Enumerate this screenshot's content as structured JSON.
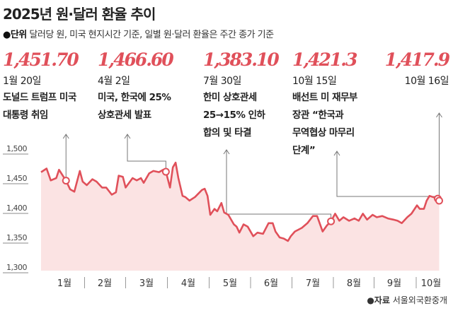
{
  "header": {
    "title": "2025년 원·달러 환율 추이",
    "subtitle_label": "●단위",
    "subtitle_text": " 달러당 원, 미국 현지시간 기준, 일별 원·달러 환율은 주간 종가 기준"
  },
  "source": {
    "label": "●자료",
    "text": " 서울외국환중개"
  },
  "chart_data": {
    "type": "area",
    "title": "2025년 원·달러 환율 추이",
    "unit": "달러당 원",
    "color": "#e0505a",
    "fill": "#fbe3e3",
    "ylim": [
      1300,
      1500
    ],
    "yticks": [
      "1,300",
      "1,350",
      "1,400",
      "1,450",
      "1,500"
    ],
    "ytick_values": [
      1300,
      1350,
      1400,
      1450,
      1500
    ],
    "xticks": [
      "1월",
      "2월",
      "3월",
      "4월",
      "5월",
      "6월",
      "7월",
      "8월",
      "9월",
      "10월"
    ],
    "grid": false,
    "series": [
      {
        "dates": [
          "01-02",
          "01-06",
          "01-09",
          "01-13",
          "01-15",
          "01-20",
          "01-23",
          "01-26",
          "01-30",
          "02-01",
          "02-04",
          "02-08",
          "02-11",
          "02-15",
          "02-18",
          "02-22",
          "02-25",
          "02-27",
          "03-02",
          "03-04",
          "03-09",
          "03-12",
          "03-15",
          "03-17",
          "03-21",
          "03-24",
          "03-28",
          "03-31",
          "04-02",
          "04-05",
          "04-07",
          "04-09",
          "04-11",
          "04-14",
          "04-16",
          "04-19",
          "04-23",
          "04-28",
          "04-30",
          "05-02",
          "05-04",
          "05-07",
          "05-09",
          "05-12",
          "05-14",
          "05-17",
          "05-21",
          "05-23",
          "05-25",
          "05-28",
          "05-31",
          "06-04",
          "06-07",
          "06-11",
          "06-15",
          "06-18",
          "06-20",
          "06-23",
          "06-26",
          "06-29",
          "07-01",
          "07-04",
          "07-09",
          "07-13",
          "07-17",
          "07-20",
          "07-24",
          "07-27",
          "07-30",
          "08-02",
          "08-05",
          "08-08",
          "08-12",
          "08-16",
          "08-19",
          "08-22",
          "08-25",
          "08-29",
          "09-01",
          "09-05",
          "09-09",
          "09-13",
          "09-16",
          "09-19",
          "09-23",
          "09-26",
          "09-30",
          "10-02",
          "10-05",
          "10-07",
          "10-09",
          "10-15",
          "10-16"
        ],
        "values": [
          1466,
          1472,
          1452,
          1456,
          1470,
          1451.7,
          1437,
          1433,
          1468,
          1450,
          1444,
          1454,
          1450,
          1440,
          1440,
          1428,
          1432,
          1460,
          1458,
          1440,
          1456,
          1452,
          1456,
          1448,
          1464,
          1468,
          1466,
          1470,
          1466.6,
          1440,
          1474,
          1482,
          1456,
          1426,
          1424,
          1418,
          1424,
          1436,
          1438,
          1426,
          1394,
          1404,
          1400,
          1414,
          1398,
          1394,
          1378,
          1374,
          1364,
          1378,
          1374,
          1358,
          1364,
          1362,
          1380,
          1380,
          1366,
          1356,
          1354,
          1350,
          1358,
          1366,
          1372,
          1380,
          1392,
          1392,
          1366,
          1376,
          1383.1,
          1396,
          1384,
          1390,
          1384,
          1388,
          1384,
          1396,
          1386,
          1394,
          1390,
          1392,
          1388,
          1386,
          1384,
          1380,
          1390,
          1396,
          1410,
          1404,
          1404,
          1418,
          1426,
          1421.3,
          1417.9
        ]
      }
    ],
    "annotations": [
      {
        "value_label": "1,451.70",
        "date": "01-20",
        "value": 1451.7,
        "date_label": "1월 20일",
        "text": "도널드 트럼프 미국\n대통령 취임"
      },
      {
        "value_label": "1,466.60",
        "date": "04-02",
        "value": 1466.6,
        "date_label": "4월 2일",
        "text": "미국, 한국에 25%\n상호관세 발표"
      },
      {
        "value_label": "1,383.10",
        "date": "07-30",
        "value": 1383.1,
        "date_label": "7월 30일",
        "text": "한미 상호관세\n25→15% 인하\n합의 및 타결"
      },
      {
        "value_label": "1,421.3",
        "date": "10-15",
        "value": 1421.3,
        "date_label": "10월 15일",
        "text": "배선트 미 재무부\n장관 “한국과\n무역협상 마무리\n단계”"
      },
      {
        "value_label": "1,417.9",
        "date": "10-16",
        "value": 1417.9,
        "date_label": "10월 16일",
        "text": ""
      }
    ]
  }
}
